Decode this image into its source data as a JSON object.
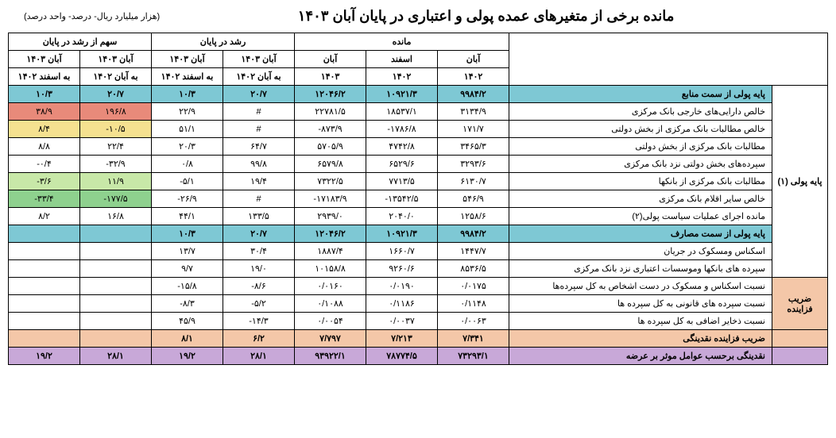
{
  "title": "مانده برخی از متغیرهای عمده پولی و اعتباری در پایان آبان ۱۴۰۳",
  "subtitle": "(هزار میلیارد ریال- درصد- واحد درصد)",
  "headers": {
    "group1": "سهم از رشد در پایان",
    "group2": "رشد در پایان",
    "group3": "مانده",
    "c1": "آبان ۱۴۰۳",
    "c2": "آبان ۱۴۰۳",
    "c3": "آبان ۱۴۰۳",
    "c4": "آبان ۱۴۰۳",
    "c5": "آبان",
    "c6": "اسفند",
    "c7": "آبان",
    "c1b": "به اسفند ۱۴۰۲",
    "c2b": "به آبان ۱۴۰۲",
    "c3b": "به اسفند ۱۴۰۲",
    "c4b": "به آبان ۱۴۰۲",
    "c5b": "۱۴۰۳",
    "c6b": "۱۴۰۲",
    "c7b": "۱۴۰۲"
  },
  "side1": "پایه پولی (۱)",
  "side2": "ضریب فزاینده",
  "rows": [
    {
      "label": "پایه پولی از سمت منابع",
      "cls": "blue",
      "v": [
        "۱۰/۳",
        "۲۰/۷",
        "۱۰/۳",
        "۲۰/۷",
        "۱۲۰۴۶/۲",
        "۱۰۹۲۱/۳",
        "۹۹۸۴/۲"
      ]
    },
    {
      "label": "خالص دارایی‌های خارجی بانک مرکزی",
      "v": [
        "۳۸/۹",
        "۱۹۶/۸",
        "۲۲/۹",
        "#",
        "۲۲۷۸۱/۵",
        "۱۸۵۳۷/۱",
        "۳۱۳۴/۹"
      ],
      "cellcls": [
        "red",
        "red",
        "",
        "",
        "",
        "",
        ""
      ]
    },
    {
      "label": "خالص مطالبات بانک مرکزی از بخش دولتی",
      "v": [
        "۸/۴",
        "-۱۰/۵",
        "۵۱/۱",
        "#",
        "-۸۷۳/۹",
        "-۱۷۸۶/۸",
        "۱۷۱/۷"
      ],
      "cellcls": [
        "yellow",
        "yellow",
        "",
        "",
        "",
        "",
        ""
      ]
    },
    {
      "label": "مطالبات بانک مرکزی از بخش دولتی",
      "v": [
        "۸/۸",
        "۲۲/۴",
        "۲۰/۳",
        "۶۴/۷",
        "۵۷۰۵/۹",
        "۴۷۴۲/۸",
        "۳۴۶۵/۳"
      ]
    },
    {
      "label": "سپرده‌های بخش دولتی نزد بانک مرکزی",
      "v": [
        "-۰/۴",
        "-۳۲/۹",
        "۰/۸",
        "۹۹/۸",
        "۶۵۷۹/۸",
        "۶۵۲۹/۶",
        "۳۲۹۳/۶"
      ]
    },
    {
      "label": "مطالبات بانک مرکزی از بانکها",
      "v": [
        "-۳/۶",
        "۱۱/۹",
        "-۵/۱",
        "۱۹/۴",
        "۷۳۲۲/۵",
        "۷۷۱۳/۵",
        "۶۱۳۰/۷"
      ],
      "cellcls": [
        "lgreen",
        "lgreen",
        "",
        "",
        "",
        "",
        ""
      ]
    },
    {
      "label": "خالص سایر اقلام بانک مرکزی",
      "v": [
        "-۳۳/۴",
        "-۱۷۷/۵",
        "-۲۶/۹",
        "#",
        "-۱۷۱۸۳/۹",
        "-۱۳۵۴۲/۵",
        "۵۴۶/۹"
      ],
      "cellcls": [
        "green",
        "green",
        "",
        "",
        "",
        "",
        ""
      ]
    },
    {
      "label": "مانده اجرای عملیات سیاست پولی(۲)",
      "v": [
        "۸/۲",
        "۱۶/۸",
        "۴۴/۱",
        "۱۳۳/۵",
        "۲۹۳۹/۰",
        "۲۰۴۰/۰",
        "۱۲۵۸/۶"
      ]
    },
    {
      "label": "پایه پولی از سمت مصارف",
      "cls": "blue",
      "v": [
        "",
        "",
        "۱۰/۳",
        "۲۰/۷",
        "۱۲۰۴۶/۲",
        "۱۰۹۲۱/۳",
        "۹۹۸۴/۲"
      ]
    },
    {
      "label": "اسکناس ومسکوک در جریان",
      "v": [
        "",
        "",
        "۱۳/۷",
        "۳۰/۴",
        "۱۸۸۷/۴",
        "۱۶۶۰/۷",
        "۱۴۴۷/۷"
      ]
    },
    {
      "label": "سپرده های بانکها وموسسات اعتباری نزد بانک مرکزی",
      "v": [
        "",
        "",
        "۹/۷",
        "۱۹/۰",
        "۱۰۱۵۸/۸",
        "۹۲۶۰/۶",
        "۸۵۳۶/۵"
      ]
    },
    {
      "label": "نسبت اسکناس و مسکوک در دست اشخاص به کل سپرده‌ها",
      "cls": "peachlabel",
      "v": [
        "",
        "",
        "-۱۵/۸",
        "-۸/۶",
        "۰/۰۱۶۰",
        "۰/۰۱۹۰",
        "۰/۰۱۷۵"
      ]
    },
    {
      "label": "نسبت سپرده های قانونی به کل سپرده ها",
      "v": [
        "",
        "",
        "-۸/۳",
        "-۵/۲",
        "۰/۱۰۸۸",
        "۰/۱۱۸۶",
        "۰/۱۱۴۸"
      ]
    },
    {
      "label": "نسبت ذخایر اضافی به کل سپرده ها",
      "v": [
        "",
        "",
        "۴۵/۹",
        "-۱۴/۳",
        "۰/۰۰۵۴",
        "۰/۰۰۳۷",
        "۰/۰۰۶۳"
      ]
    },
    {
      "label": "ضریب فزاینده نقدینگی",
      "cls": "peach",
      "v": [
        "",
        "",
        "۸/۱",
        "۶/۲",
        "۷/۷۹۷",
        "۷/۲۱۳",
        "۷/۳۴۱"
      ]
    },
    {
      "label": "نقدینگی برحسب عوامل موثر بر عرضه",
      "cls": "purple",
      "v": [
        "۱۹/۲",
        "۲۸/۱",
        "۱۹/۲",
        "۲۸/۱",
        "۹۳۹۲۲/۱",
        "۷۸۷۷۴/۵",
        "۷۳۲۹۳/۱"
      ]
    }
  ]
}
